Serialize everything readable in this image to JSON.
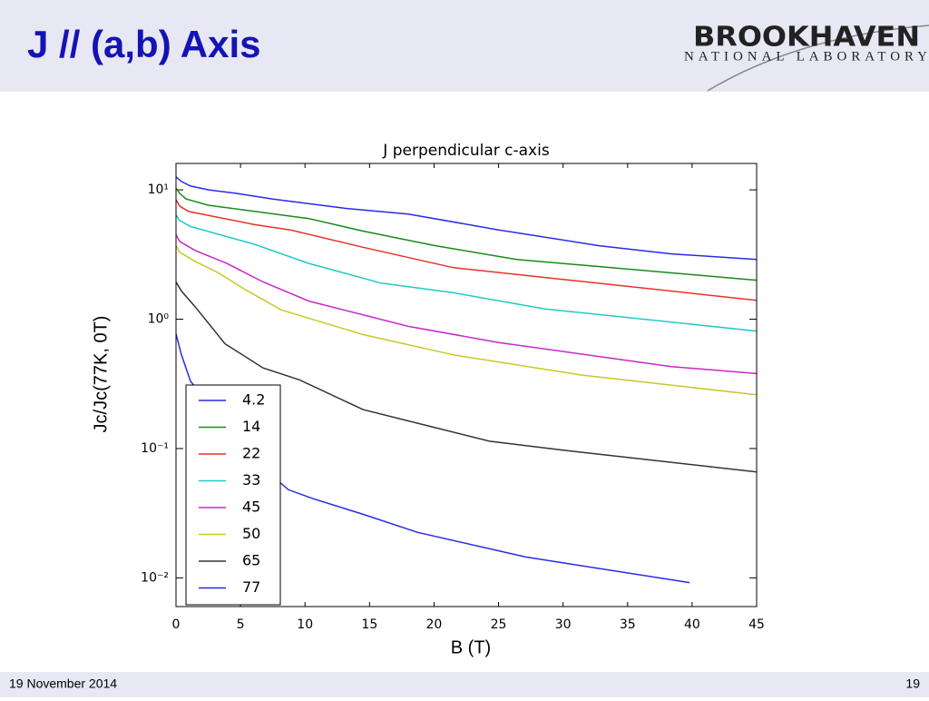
{
  "header": {
    "title": "J // (a,b) Axis",
    "logo": {
      "name": "BROOKHAVEN",
      "subtitle": "NATIONAL LABORATORY"
    }
  },
  "chart_data": {
    "type": "line",
    "title": "J perpendicular c-axis",
    "x_label": "B (T)",
    "y_label": "Jc/Jc(77K, 0T)",
    "xlim": [
      0,
      45
    ],
    "xticks": [
      0,
      5,
      10,
      15,
      20,
      25,
      30,
      35,
      40,
      45
    ],
    "ylim": [
      0.006,
      16
    ],
    "y_scale": "log",
    "yticks": [
      {
        "value": 0.01,
        "label": "10⁻²"
      },
      {
        "value": 0.1,
        "label": "10⁻¹"
      },
      {
        "value": 1,
        "label": "10⁰"
      },
      {
        "value": 10,
        "label": "10¹"
      }
    ],
    "legend": "lower left",
    "series": [
      {
        "name": "4.2",
        "color": "#2a2ae6",
        "x": [
          0,
          0.42,
          1.13,
          2.53,
          4.64,
          7.45,
          13.1,
          18.0,
          25.0,
          32.8,
          38.4,
          45.0
        ],
        "values": [
          12.6,
          11.6,
          10.7,
          10,
          9.4,
          8.5,
          7.2,
          6.5,
          4.9,
          3.7,
          3.2,
          2.9
        ]
      },
      {
        "name": "14",
        "color": "#1a8a1a",
        "x": [
          0,
          0.28,
          0.77,
          2.53,
          10.3,
          14.5,
          20.1,
          26.4,
          45
        ],
        "values": [
          10.3,
          9.4,
          8.5,
          7.6,
          6.0,
          4.8,
          3.7,
          2.9,
          2.0
        ]
      },
      {
        "name": "22",
        "color": "#e8302a",
        "x": [
          0,
          0.28,
          0.98,
          6.05,
          8.86,
          14.5,
          21.5,
          28.6,
          45
        ],
        "values": [
          8.4,
          7.5,
          6.8,
          5.4,
          4.9,
          3.6,
          2.5,
          2.1,
          1.4
        ]
      },
      {
        "name": "33",
        "color": "#22c8c8",
        "x": [
          0,
          0.28,
          1.13,
          6.05,
          10.3,
          15.9,
          21.5,
          28.6,
          45
        ],
        "values": [
          6.4,
          5.8,
          5.2,
          3.8,
          2.7,
          1.9,
          1.6,
          1.2,
          0.81
        ]
      },
      {
        "name": "45",
        "color": "#c828c8",
        "x": [
          0,
          0.28,
          1.48,
          3.94,
          6.75,
          10.3,
          18.0,
          25.0,
          38.4,
          45
        ],
        "values": [
          4.5,
          4.0,
          3.4,
          2.7,
          1.94,
          1.38,
          0.88,
          0.66,
          0.43,
          0.38
        ]
      },
      {
        "name": "50",
        "color": "#c8c828",
        "x": [
          0,
          0.28,
          1.48,
          3.23,
          5.34,
          8.16,
          14.5,
          21.5,
          31.4,
          45
        ],
        "values": [
          3.7,
          3.3,
          2.8,
          2.3,
          1.7,
          1.18,
          0.76,
          0.53,
          0.37,
          0.26
        ]
      },
      {
        "name": "65",
        "color": "#333333",
        "x": [
          0,
          0.42,
          1.48,
          3.8,
          6.75,
          9.56,
          14.5,
          20.1,
          24.3,
          30.0,
          45
        ],
        "values": [
          1.94,
          1.65,
          1.25,
          0.645,
          0.42,
          0.34,
          0.2,
          0.145,
          0.114,
          0.097,
          0.066
        ]
      },
      {
        "name": "77",
        "color": "#2a2ae6",
        "x": [
          0,
          0.42,
          1.13,
          8.02,
          8.72,
          10.6,
          14.5,
          18.7,
          27.1,
          39.8
        ],
        "values": [
          0.77,
          0.53,
          0.33,
          0.055,
          0.048,
          0.041,
          0.031,
          0.0225,
          0.0145,
          0.0092
        ]
      }
    ]
  },
  "footer": {
    "date": "19 November 2014",
    "page": "19"
  }
}
